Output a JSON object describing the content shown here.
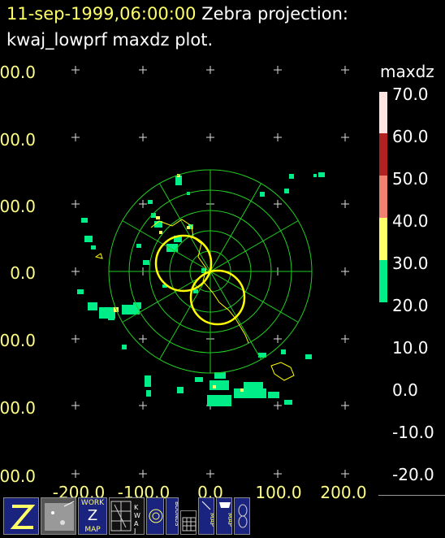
{
  "header": {
    "datetime": "11-sep-1999,06:00:00",
    "projection": "Zebra projection:",
    "plot_desc": "kwaj_lowprf maxdz plot."
  },
  "axes": {
    "y_labels": [
      "00.0",
      "00.0",
      "00.0",
      "0.0",
      "00.0",
      "00.0",
      "00.0"
    ],
    "x_labels": [
      "-200.0",
      "-100.0",
      "0.0",
      "100.0",
      "200.0"
    ]
  },
  "colorbar": {
    "title": "maxdz",
    "labels": [
      "70.0",
      "60.0",
      "50.0",
      "40.0",
      "30.0",
      "20.0",
      "10.0",
      "0.0",
      "-10.0",
      "-20.0"
    ],
    "colors": {
      "60-70": "#ffe4e1",
      "50-60": "#b22222",
      "40-50": "#f08070",
      "30-40": "#ffff66",
      "20-30": "#00ee88"
    }
  },
  "toolbar": {
    "icons": [
      {
        "name": "zebra-logo-icon",
        "label": "Z"
      },
      {
        "name": "satellite-image-icon",
        "label": ""
      },
      {
        "name": "work-map-icon",
        "label": "WORK"
      },
      {
        "name": "kwaj-map-icon",
        "label": "KWAJ"
      },
      {
        "name": "radar-target-icon",
        "label": ""
      },
      {
        "name": "bounds-icon",
        "label": "BOUNDS"
      },
      {
        "name": "grid-icon",
        "label": ""
      },
      {
        "name": "map-icon",
        "label": "MAP"
      },
      {
        "name": "usa-map-icon",
        "label": "MAP"
      },
      {
        "name": "loop-icon",
        "label": ""
      }
    ],
    "work_label": "WORK",
    "z_label": "Z",
    "map_label": "MAP"
  },
  "colors": {
    "range_rings": "#22cc22",
    "coastline": "#ffff00",
    "echo_low": "#00ee88",
    "title_yellow": "#ffff66",
    "axis_label": "#ffff88"
  }
}
